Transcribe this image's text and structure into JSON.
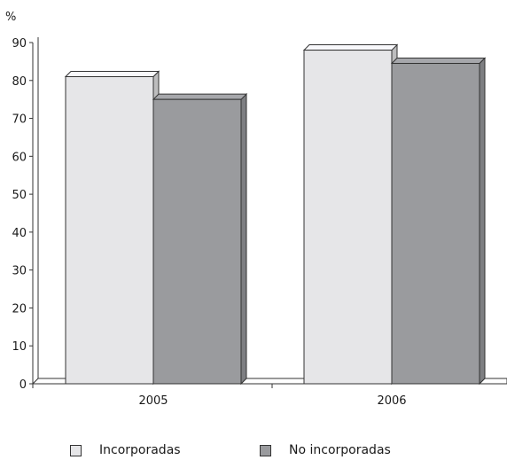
{
  "chart_data": {
    "type": "bar",
    "ylabel": "%",
    "categories": [
      "2005",
      "2006"
    ],
    "series": [
      {
        "name": "Incorporadas",
        "values": [
          81,
          88
        ],
        "color": "#e6e6e8"
      },
      {
        "name": "No incorporadas",
        "values": [
          75,
          84.5
        ],
        "color": "#9a9b9e"
      }
    ],
    "ylim": [
      0,
      90
    ],
    "yticks": [
      0,
      10,
      20,
      30,
      40,
      50,
      60,
      70,
      80,
      90
    ],
    "grid": false,
    "legend": "bottom",
    "style": "3d"
  }
}
